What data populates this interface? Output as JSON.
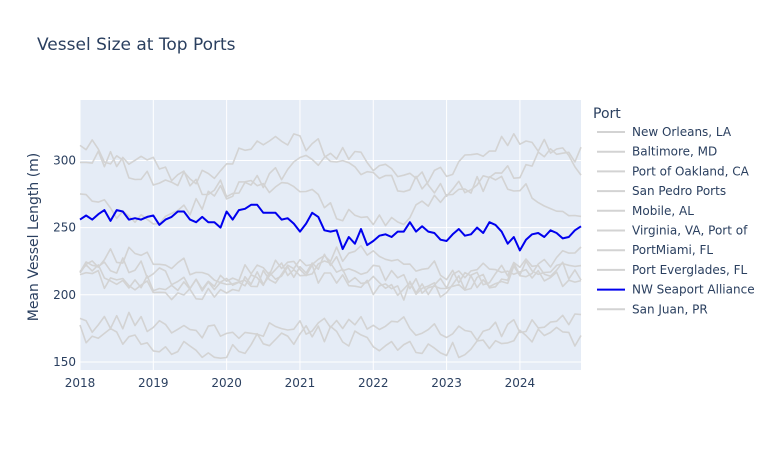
{
  "chart_data": {
    "type": "line",
    "title": "Vessel Size at Top Ports",
    "xlabel": "",
    "ylabel": "Mean Vessel Length (m)",
    "xlim": [
      "2018-01",
      "2024-12"
    ],
    "ylim": [
      144,
      345
    ],
    "x_ticks": [
      "2018",
      "2019",
      "2020",
      "2021",
      "2022",
      "2023",
      "2024"
    ],
    "y_ticks": [
      150,
      200,
      250,
      300
    ],
    "grid": true,
    "legend_title": "Port",
    "legend_position": "right",
    "highlight_color": "#0000ee",
    "muted_color": "#d3d3d3",
    "plot_background": "#e5ecf6",
    "series": [
      {
        "name": "New Orleans, LA",
        "base": 175,
        "amp": 5,
        "phase": 0.3
      },
      {
        "name": "Baltimore, MD",
        "base": 215,
        "amp": 9,
        "phase": 1.1
      },
      {
        "name": "Port of Oakland, CA",
        "base": 290,
        "amp": 12,
        "phase": 0.7
      },
      {
        "name": "San Pedro Ports",
        "base": 300,
        "amp": 16,
        "phase": 2.2
      },
      {
        "name": "Mobile, AL",
        "base": 210,
        "amp": 8,
        "phase": 1.7
      },
      {
        "name": "Virginia, VA, Port of",
        "base": 270,
        "amp": 14,
        "phase": 2.9
      },
      {
        "name": "PortMiami, FL",
        "base": 220,
        "amp": 10,
        "phase": 0.1
      },
      {
        "name": "Port Everglades, FL",
        "base": 212,
        "amp": 9,
        "phase": 2.5
      },
      {
        "name": "NW Seaport Alliance",
        "highlight": true
      },
      {
        "name": "San Juan, PR",
        "base": 165,
        "amp": 6,
        "phase": 1.4
      }
    ],
    "highlight_values": [
      256,
      259,
      256,
      260,
      263,
      255,
      263,
      262,
      256,
      257,
      256,
      258,
      259,
      252,
      256,
      258,
      262,
      262,
      256,
      254,
      258,
      254,
      254,
      250,
      262,
      256,
      263,
      264,
      267,
      267,
      261,
      261,
      261,
      256,
      257,
      253,
      247,
      253,
      261,
      258,
      248,
      247,
      248,
      234,
      243,
      238,
      249,
      237,
      240,
      244,
      245,
      243,
      247,
      247,
      254,
      247,
      251,
      247,
      246,
      241,
      240,
      245,
      249,
      244,
      245,
      250,
      246,
      254,
      252,
      247,
      238,
      243,
      233,
      241,
      245,
      246,
      243,
      248,
      246,
      242,
      243,
      248,
      251
    ]
  }
}
